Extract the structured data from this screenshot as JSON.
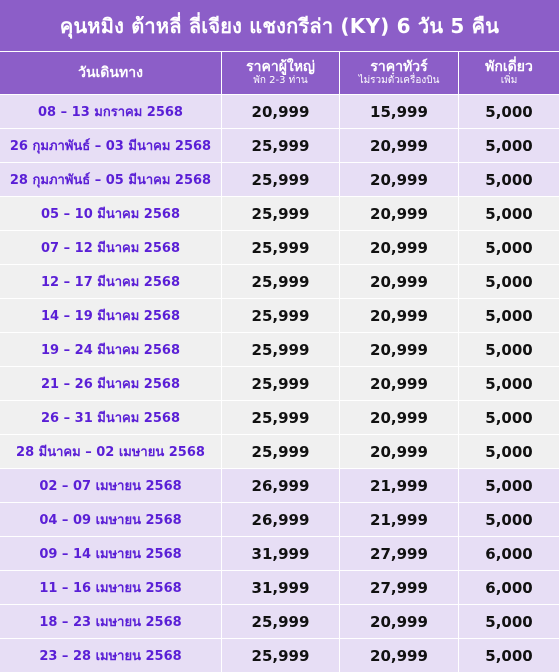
{
  "title": "คุนหมิง ต้าหลี่ ลี่เจียง แชงกรีล่า (KY) 6 วัน 5 คืน",
  "headers": {
    "date": "วันเดินทาง",
    "adult": "ราคาผู้ใหญ่",
    "adult_sub": "พัก 2-3 ท่าน",
    "tour": "ราคาทัวร์",
    "tour_sub": "ไม่รวมตั๋วเครื่องบิน",
    "single": "พักเดี่ยว",
    "single_sub": "เพิ่ม"
  },
  "rows": [
    {
      "date": "08 – 13 มกราคม 2568",
      "adult": "20,999",
      "tour": "15,999",
      "single": "5,000"
    },
    {
      "date": "26 กุมภาพันธ์ – 03 มีนาคม 2568",
      "adult": "25,999",
      "tour": "20,999",
      "single": "5,000"
    },
    {
      "date": "28 กุมภาพันธ์ – 05 มีนาคม 2568",
      "adult": "25,999",
      "tour": "20,999",
      "single": "5,000"
    },
    {
      "date": "05 – 10 มีนาคม 2568",
      "adult": "25,999",
      "tour": "20,999",
      "single": "5,000"
    },
    {
      "date": "07 – 12 มีนาคม 2568",
      "adult": "25,999",
      "tour": "20,999",
      "single": "5,000"
    },
    {
      "date": "12 – 17 มีนาคม 2568",
      "adult": "25,999",
      "tour": "20,999",
      "single": "5,000"
    },
    {
      "date": "14 – 19 มีนาคม 2568",
      "adult": "25,999",
      "tour": "20,999",
      "single": "5,000"
    },
    {
      "date": "19 – 24 มีนาคม 2568",
      "adult": "25,999",
      "tour": "20,999",
      "single": "5,000"
    },
    {
      "date": "21 – 26 มีนาคม 2568",
      "adult": "25,999",
      "tour": "20,999",
      "single": "5,000"
    },
    {
      "date": "26 – 31 มีนาคม 2568",
      "adult": "25,999",
      "tour": "20,999",
      "single": "5,000"
    },
    {
      "date": "28 มีนาคม – 02 เมษายน 2568",
      "adult": "25,999",
      "tour": "20,999",
      "single": "5,000"
    },
    {
      "date": "02 – 07 เมษายน 2568",
      "adult": "26,999",
      "tour": "21,999",
      "single": "5,000"
    },
    {
      "date": "04 – 09 เมษายน 2568",
      "adult": "26,999",
      "tour": "21,999",
      "single": "5,000"
    },
    {
      "date": "09 – 14 เมษายน 2568",
      "adult": "31,999",
      "tour": "27,999",
      "single": "6,000"
    },
    {
      "date": "11 – 16 เมษายน 2568",
      "adult": "31,999",
      "tour": "27,999",
      "single": "6,000"
    },
    {
      "date": "18 – 23 เมษายน 2568",
      "adult": "25,999",
      "tour": "20,999",
      "single": "5,000"
    },
    {
      "date": "23 – 28 เมษายน 2568",
      "adult": "25,999",
      "tour": "20,999",
      "single": "5,000"
    }
  ],
  "colors": {
    "header_bg": "#8c5ec8",
    "row_even": "#f0f0f0",
    "row_odd": "#e7def5",
    "date_text": "#5a1fd6"
  }
}
